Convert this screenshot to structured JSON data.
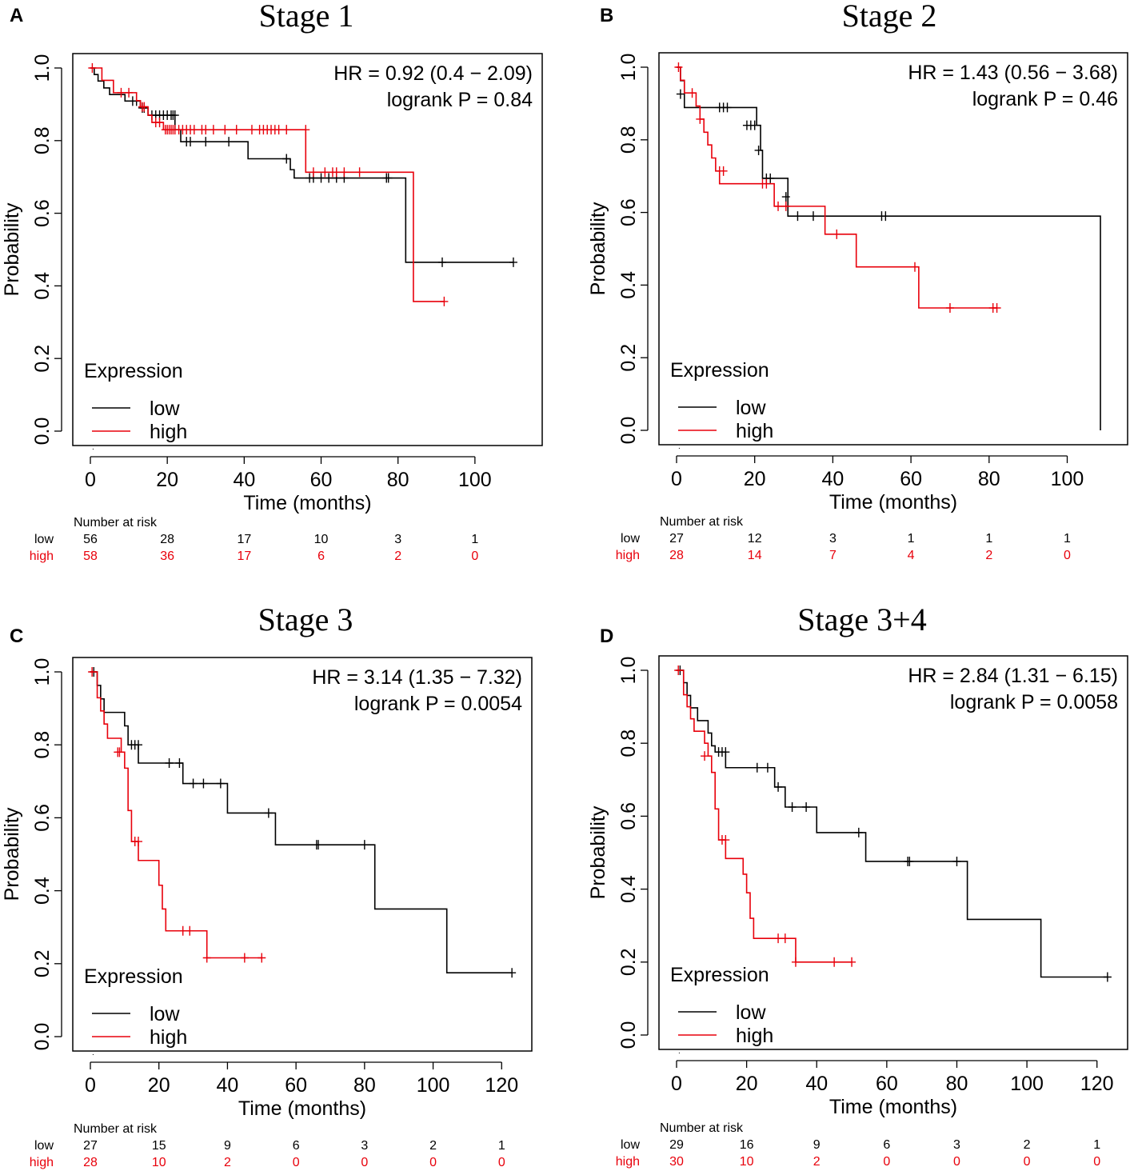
{
  "colors": {
    "low": "#000000",
    "high": "#e8000b"
  },
  "chart_data": [
    {
      "type": "line",
      "panel_letter": "A",
      "title": "Stage 1",
      "xlabel": "Time (months)",
      "ylabel": "Probability",
      "xlim": [
        0,
        115
      ],
      "ylim": [
        0,
        1
      ],
      "xticks": [
        0,
        20,
        40,
        60,
        80,
        100
      ],
      "yticks": [
        "0.0",
        "0.2",
        "0.4",
        "0.6",
        "0.8",
        "1.0"
      ],
      "hr_text": "HR = 0.92 (0.4 − 2.09)",
      "p_text": "logrank P = 0.84",
      "legend": {
        "title": "Expression",
        "low": "low",
        "high": "high"
      },
      "risk": {
        "header": "Number at risk",
        "low_label": "low",
        "high_label": "high",
        "low": [
          "56",
          "28",
          "17",
          "10",
          "3",
          "1"
        ],
        "high": [
          "58",
          "36",
          "17",
          "6",
          "2",
          "0"
        ]
      },
      "series": [
        {
          "name": "low",
          "x": [
            0,
            1,
            2,
            3.5,
            5,
            9,
            13,
            15,
            22,
            23.5,
            41,
            52,
            53,
            82,
            110
          ],
          "y": [
            1,
            0.982,
            0.964,
            0.945,
            0.927,
            0.909,
            0.89,
            0.87,
            0.83,
            0.797,
            0.75,
            0.72,
            0.697,
            0.465,
            0.465
          ],
          "censors": [
            [
              11,
              0.909
            ],
            [
              12,
              0.909
            ],
            [
              13.5,
              0.89
            ],
            [
              14,
              0.89
            ],
            [
              16,
              0.87
            ],
            [
              17,
              0.87
            ],
            [
              18,
              0.87
            ],
            [
              19,
              0.87
            ],
            [
              20,
              0.87
            ],
            [
              21,
              0.87
            ],
            [
              21.5,
              0.87
            ],
            [
              22,
              0.87
            ],
            [
              25,
              0.797
            ],
            [
              26,
              0.797
            ],
            [
              30,
              0.797
            ],
            [
              36,
              0.797
            ],
            [
              51,
              0.75
            ],
            [
              57,
              0.697
            ],
            [
              58,
              0.697
            ],
            [
              60,
              0.697
            ],
            [
              62,
              0.697
            ],
            [
              64,
              0.697
            ],
            [
              66,
              0.697
            ],
            [
              77,
              0.697
            ],
            [
              77.5,
              0.697
            ],
            [
              91.5,
              0.465
            ],
            [
              110,
              0.465
            ]
          ]
        },
        {
          "name": "high",
          "x": [
            0,
            3,
            6,
            12,
            13,
            15,
            16,
            19,
            56,
            84,
            92
          ],
          "y": [
            1,
            0.966,
            0.932,
            0.91,
            0.893,
            0.87,
            0.85,
            0.83,
            0.713,
            0.357,
            0.357
          ],
          "censors": [
            [
              0.5,
              1
            ],
            [
              8,
              0.932
            ],
            [
              10,
              0.932
            ],
            [
              13.5,
              0.893
            ],
            [
              14,
              0.893
            ],
            [
              17,
              0.85
            ],
            [
              18,
              0.85
            ],
            [
              19.5,
              0.83
            ],
            [
              20,
              0.83
            ],
            [
              20.5,
              0.83
            ],
            [
              21,
              0.83
            ],
            [
              21.5,
              0.83
            ],
            [
              22,
              0.83
            ],
            [
              23,
              0.83
            ],
            [
              24,
              0.83
            ],
            [
              25,
              0.83
            ],
            [
              26,
              0.83
            ],
            [
              27,
              0.83
            ],
            [
              29,
              0.83
            ],
            [
              30,
              0.83
            ],
            [
              32,
              0.83
            ],
            [
              35,
              0.83
            ],
            [
              38,
              0.83
            ],
            [
              42,
              0.83
            ],
            [
              44,
              0.83
            ],
            [
              45,
              0.83
            ],
            [
              46,
              0.83
            ],
            [
              47,
              0.83
            ],
            [
              48,
              0.83
            ],
            [
              49,
              0.83
            ],
            [
              51,
              0.83
            ],
            [
              56,
              0.83
            ],
            [
              58,
              0.713
            ],
            [
              61,
              0.713
            ],
            [
              63,
              0.713
            ],
            [
              64,
              0.713
            ],
            [
              66,
              0.713
            ],
            [
              70,
              0.713
            ],
            [
              92,
              0.357
            ]
          ]
        }
      ]
    },
    {
      "type": "line",
      "panel_letter": "B",
      "title": "Stage 2",
      "xlabel": "Time (months)",
      "ylabel": "Probability",
      "xlim": [
        0,
        113
      ],
      "ylim": [
        0,
        1
      ],
      "xticks": [
        0,
        20,
        40,
        60,
        80,
        100
      ],
      "yticks": [
        "0.0",
        "0.2",
        "0.4",
        "0.6",
        "0.8",
        "1.0"
      ],
      "hr_text": "HR = 1.43 (0.56 − 3.68)",
      "p_text": "logrank P = 0.46",
      "legend": {
        "title": "Expression",
        "low": "low",
        "high": "high"
      },
      "risk": {
        "header": "Number at risk",
        "low_label": "low",
        "high_label": "high",
        "low": [
          "27",
          "12",
          "3",
          "1",
          "1",
          "1"
        ],
        "high": [
          "28",
          "14",
          "7",
          "4",
          "2",
          "0"
        ]
      },
      "series": [
        {
          "name": "low",
          "x": [
            0,
            1,
            2,
            13,
            20.5,
            21.5,
            22,
            27,
            28.5,
            108.5,
            108.5
          ],
          "y": [
            1,
            0.963,
            0.889,
            0.889,
            0.84,
            0.771,
            0.694,
            0.694,
            0.59,
            0.59,
            0
          ],
          "censors": [
            [
              1,
              0.926
            ],
            [
              11,
              0.889
            ],
            [
              12,
              0.889
            ],
            [
              13,
              0.889
            ],
            [
              18,
              0.84
            ],
            [
              19,
              0.84
            ],
            [
              20,
              0.84
            ],
            [
              21,
              0.771
            ],
            [
              23,
              0.694
            ],
            [
              24,
              0.694
            ],
            [
              28,
              0.643
            ],
            [
              31,
              0.59
            ],
            [
              35,
              0.59
            ],
            [
              52.5,
              0.59
            ],
            [
              53.5,
              0.59
            ]
          ]
        },
        {
          "name": "high",
          "x": [
            0,
            1,
            2,
            5,
            6,
            7,
            8,
            9,
            10,
            11,
            12,
            13,
            25,
            38,
            46,
            62,
            82
          ],
          "y": [
            1,
            0.964,
            0.929,
            0.893,
            0.857,
            0.821,
            0.786,
            0.75,
            0.714,
            0.679,
            0.679,
            0.679,
            0.617,
            0.54,
            0.45,
            0.337,
            0.337
          ],
          "censors": [
            [
              0.5,
              1
            ],
            [
              4,
              0.929
            ],
            [
              6,
              0.857
            ],
            [
              11,
              0.714
            ],
            [
              12,
              0.714
            ],
            [
              22,
              0.679
            ],
            [
              23,
              0.679
            ],
            [
              26,
              0.617
            ],
            [
              28,
              0.617
            ],
            [
              41,
              0.54
            ],
            [
              61,
              0.45
            ],
            [
              70,
              0.337
            ],
            [
              81,
              0.337
            ],
            [
              82,
              0.337
            ]
          ]
        }
      ]
    },
    {
      "type": "line",
      "panel_letter": "C",
      "title": "Stage 3",
      "xlabel": "Time (months)",
      "ylabel": "Probability",
      "xlim": [
        0,
        126
      ],
      "ylim": [
        0,
        1
      ],
      "xticks": [
        0,
        20,
        40,
        60,
        80,
        100,
        120
      ],
      "yticks": [
        "0.0",
        "0.2",
        "0.4",
        "0.6",
        "0.8",
        "1.0"
      ],
      "hr_text": "HR = 3.14 (1.35 − 7.32)",
      "p_text": "logrank P = 0.0054",
      "legend": {
        "title": "Expression",
        "low": "low",
        "high": "high"
      },
      "risk": {
        "header": "Number at risk",
        "low_label": "low",
        "high_label": "high",
        "low": [
          "27",
          "15",
          "9",
          "6",
          "3",
          "2",
          "1"
        ],
        "high": [
          "28",
          "10",
          "2",
          "0",
          "0",
          "0",
          "0"
        ]
      },
      "series": [
        {
          "name": "low",
          "x": [
            0,
            2,
            3,
            4,
            10,
            11,
            14,
            27,
            40,
            54,
            83,
            104,
            123
          ],
          "y": [
            1,
            0.963,
            0.926,
            0.889,
            0.852,
            0.8,
            0.75,
            0.694,
            0.613,
            0.526,
            0.35,
            0.175,
            0.175
          ],
          "censors": [
            [
              1,
              1
            ],
            [
              12,
              0.8
            ],
            [
              13,
              0.8
            ],
            [
              14,
              0.8
            ],
            [
              23,
              0.75
            ],
            [
              26,
              0.75
            ],
            [
              30,
              0.694
            ],
            [
              33,
              0.694
            ],
            [
              38,
              0.694
            ],
            [
              52,
              0.613
            ],
            [
              66,
              0.526
            ],
            [
              66.5,
              0.526
            ],
            [
              80,
              0.526
            ],
            [
              123,
              0.175
            ]
          ]
        },
        {
          "name": "high",
          "x": [
            0,
            2,
            3,
            4,
            5,
            9,
            10,
            11,
            12,
            14,
            20,
            21,
            22,
            34,
            50
          ],
          "y": [
            1,
            0.929,
            0.893,
            0.857,
            0.818,
            0.78,
            0.736,
            0.62,
            0.535,
            0.483,
            0.415,
            0.35,
            0.29,
            0.216,
            0.216
          ],
          "censors": [
            [
              0.5,
              1
            ],
            [
              8,
              0.78
            ],
            [
              8.5,
              0.78
            ],
            [
              13,
              0.535
            ],
            [
              14,
              0.535
            ],
            [
              27,
              0.29
            ],
            [
              29,
              0.29
            ],
            [
              34,
              0.216
            ],
            [
              45,
              0.216
            ],
            [
              50,
              0.216
            ]
          ]
        }
      ]
    },
    {
      "type": "line",
      "panel_letter": "D",
      "title": "Stage 3+4",
      "xlabel": "Time (months)",
      "ylabel": "Probability",
      "xlim": [
        0,
        126
      ],
      "ylim": [
        0,
        1
      ],
      "xticks": [
        0,
        20,
        40,
        60,
        80,
        100,
        120
      ],
      "yticks": [
        "0.0",
        "0.2",
        "0.4",
        "0.6",
        "0.8",
        "1.0"
      ],
      "hr_text": "HR = 2.84 (1.31 − 6.15)",
      "p_text": "logrank P = 0.0058",
      "legend": {
        "title": "Expression",
        "low": "low",
        "high": "high"
      },
      "risk": {
        "header": "Number at risk",
        "low_label": "low",
        "high_label": "high",
        "low": [
          "29",
          "16",
          "9",
          "6",
          "3",
          "2",
          "1"
        ],
        "high": [
          "30",
          "10",
          "2",
          "0",
          "0",
          "0",
          "0"
        ]
      },
      "series": [
        {
          "name": "low",
          "x": [
            0,
            2,
            3,
            4,
            6,
            9,
            10,
            11,
            13,
            14,
            28,
            31,
            40,
            54,
            83,
            104,
            123
          ],
          "y": [
            1,
            0.966,
            0.931,
            0.897,
            0.862,
            0.828,
            0.793,
            0.776,
            0.776,
            0.733,
            0.68,
            0.625,
            0.555,
            0.476,
            0.317,
            0.159,
            0.159
          ],
          "censors": [
            [
              1,
              1
            ],
            [
              12,
              0.776
            ],
            [
              13,
              0.776
            ],
            [
              14,
              0.776
            ],
            [
              23,
              0.733
            ],
            [
              26,
              0.733
            ],
            [
              29,
              0.68
            ],
            [
              33,
              0.625
            ],
            [
              37,
              0.625
            ],
            [
              52,
              0.555
            ],
            [
              66,
              0.476
            ],
            [
              66.5,
              0.476
            ],
            [
              80,
              0.476
            ],
            [
              123,
              0.159
            ]
          ]
        },
        {
          "name": "high",
          "x": [
            0,
            2,
            3,
            4,
            5,
            8,
            9,
            10,
            11,
            12,
            14,
            19,
            20,
            21,
            22,
            34,
            50
          ],
          "y": [
            1,
            0.933,
            0.9,
            0.867,
            0.833,
            0.8,
            0.765,
            0.72,
            0.62,
            0.535,
            0.484,
            0.441,
            0.39,
            0.32,
            0.265,
            0.2,
            0.2
          ],
          "censors": [
            [
              0.5,
              1
            ],
            [
              8,
              0.765
            ],
            [
              13,
              0.535
            ],
            [
              14,
              0.535
            ],
            [
              29,
              0.265
            ],
            [
              31,
              0.265
            ],
            [
              34,
              0.2
            ],
            [
              45,
              0.2
            ],
            [
              50,
              0.2
            ]
          ]
        }
      ]
    }
  ]
}
